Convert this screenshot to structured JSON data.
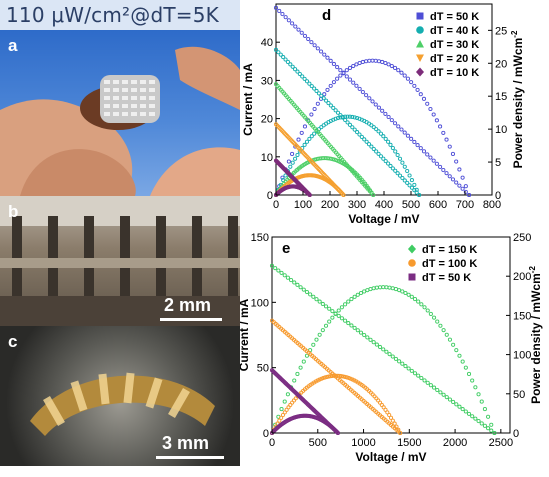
{
  "header": {
    "title": "110 μW/cm²@dT=5K"
  },
  "photos": [
    {
      "letter": "a",
      "scale": ""
    },
    {
      "letter": "b",
      "scale": "2 mm"
    },
    {
      "letter": "c",
      "scale": "3 mm"
    }
  ],
  "colors": {
    "dT50": "#4e4ed6",
    "dT40": "#15aeb0",
    "dT30": "#4ecf68",
    "dT20": "#f5a030",
    "dT10": "#7d2c7a",
    "dT150": "#3fcc63",
    "dT100": "#f79a2e",
    "dT50e": "#7b2d83"
  },
  "chart_data": [
    {
      "type": "scatter",
      "panel": "d",
      "xlabel": "Voltage / mV",
      "ylabel": "Current / mA",
      "y2label": "Power density / mWcm-2",
      "xlim": [
        0,
        800
      ],
      "ylim": [
        0,
        50
      ],
      "y2lim": [
        0,
        29
      ],
      "xticks": [
        "0",
        "100",
        "200",
        "300",
        "400",
        "500",
        "600",
        "700",
        "800"
      ],
      "yticks": [
        "0",
        "10",
        "20",
        "30",
        "40"
      ],
      "y2ticks": [
        "0",
        "5",
        "10",
        "15",
        "20",
        "25"
      ],
      "legend_position": "top-right",
      "series": [
        {
          "name": "dT = 50 K",
          "color_key": "dT50",
          "voc": 715,
          "isc": 49,
          "pmax": 20.4,
          "vmp": 360
        },
        {
          "name": "dT = 40 K",
          "color_key": "dT40",
          "voc": 530,
          "isc": 38,
          "pmax": 11.9,
          "vmp": 265
        },
        {
          "name": "dT = 30 K",
          "color_key": "dT30",
          "voc": 360,
          "isc": 29,
          "pmax": 5.6,
          "vmp": 180
        },
        {
          "name": "dT = 20 K",
          "color_key": "dT20",
          "voc": 250,
          "isc": 18.5,
          "pmax": 3.0,
          "vmp": 125
        },
        {
          "name": "dT = 10 K",
          "color_key": "dT10",
          "voc": 125,
          "isc": 9,
          "pmax": 1.3,
          "vmp": 62
        }
      ]
    },
    {
      "type": "scatter",
      "panel": "e",
      "xlabel": "Voltage / mV",
      "ylabel": "Current / mA",
      "y2label": "Power density / mWcm-2",
      "xlim": [
        0,
        2600
      ],
      "ylim": [
        0,
        150
      ],
      "y2lim": [
        0,
        250
      ],
      "xticks": [
        "0",
        "500",
        "1000",
        "1500",
        "2000",
        "2500"
      ],
      "yticks": [
        "0",
        "50",
        "100",
        "150"
      ],
      "y2ticks": [
        "0",
        "50",
        "100",
        "150",
        "200",
        "250"
      ],
      "legend_position": "top-center",
      "series": [
        {
          "name": "dT = 150 K",
          "color_key": "dT150",
          "voc": 2430,
          "isc": 128,
          "pmax": 186,
          "vmp": 1210
        },
        {
          "name": "dT = 100 K",
          "color_key": "dT100",
          "voc": 1400,
          "isc": 86,
          "pmax": 73,
          "vmp": 700
        },
        {
          "name": "dT = 50 K",
          "color_key": "dT50e",
          "voc": 720,
          "isc": 48,
          "pmax": 22,
          "vmp": 360
        }
      ]
    }
  ]
}
